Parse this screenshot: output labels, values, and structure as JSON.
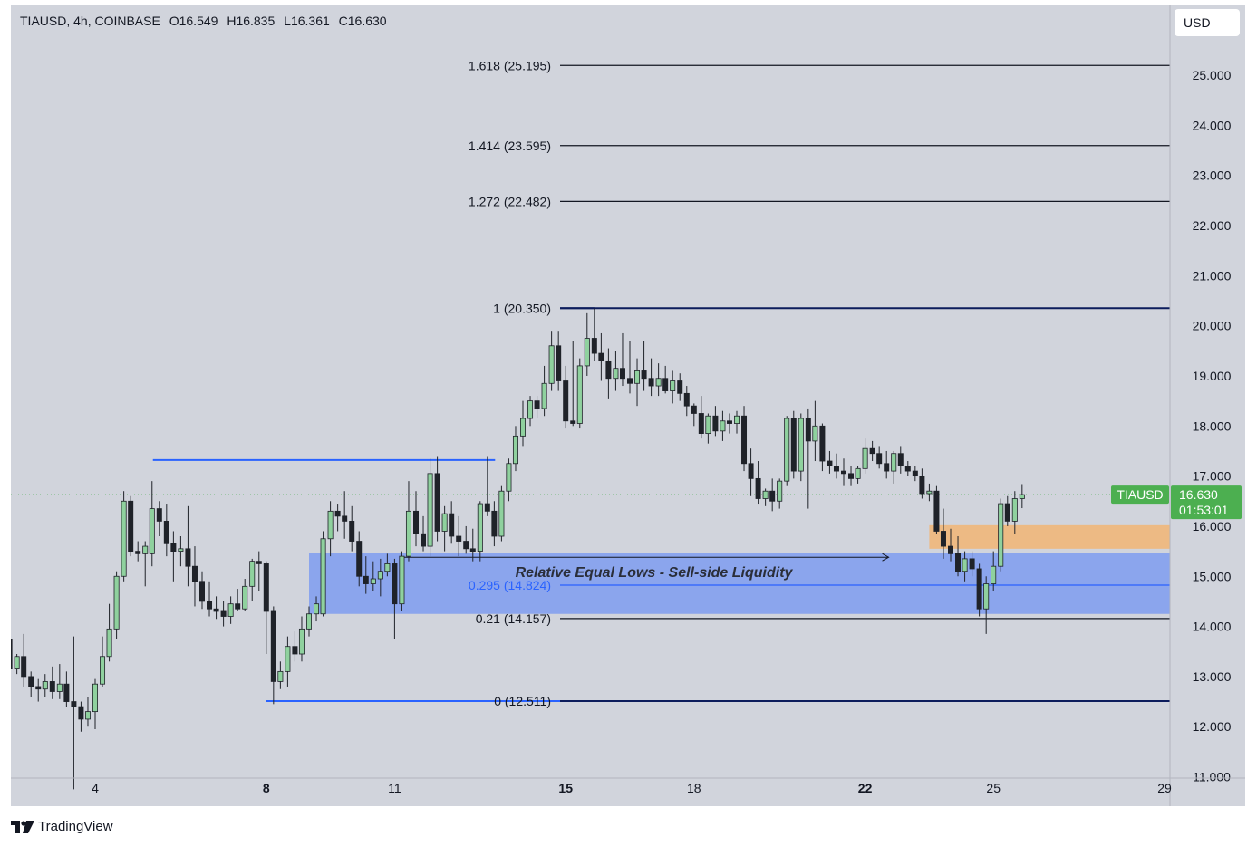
{
  "legend": {
    "symbol": "TIAUSD, 4h, COINBASE",
    "open": "O16.549",
    "high": "H16.835",
    "low": "L16.361",
    "close": "C16.630"
  },
  "currency_button": "USD",
  "brand": "TradingView",
  "price_tag": {
    "symbol": "TIAUSD",
    "price": "16.630",
    "countdown": "01:53:01",
    "value": 16.63
  },
  "colors": {
    "background": "#d1d4dc",
    "bull": "#8fd19e",
    "bear": "#1f2229",
    "fib_line": "#131722",
    "range_line": "#2962ff",
    "top_line": "#0c1c5c",
    "liquidity_zone": "#7f9cf0",
    "demand_zone": "#f0b77a",
    "price_tag": "#4caf50"
  },
  "chart_data": {
    "type": "candlestick",
    "y_axis": {
      "range": [
        10.7,
        26.0
      ],
      "ticks": [
        "11.000",
        "12.000",
        "13.000",
        "14.000",
        "15.000",
        "16.000",
        "17.000",
        "18.000",
        "19.000",
        "20.000",
        "21.000",
        "22.000",
        "23.000",
        "24.000",
        "25.000"
      ]
    },
    "x_axis": {
      "ticks": [
        {
          "label": "4",
          "day": 4,
          "bold": false
        },
        {
          "label": "8",
          "day": 8,
          "bold": true
        },
        {
          "label": "11",
          "day": 11,
          "bold": false
        },
        {
          "label": "15",
          "day": 15,
          "bold": true
        },
        {
          "label": "18",
          "day": 18,
          "bold": false
        },
        {
          "label": "22",
          "day": 22,
          "bold": true
        },
        {
          "label": "25",
          "day": 25,
          "bold": false
        },
        {
          "label": "29",
          "day": 29,
          "bold": false
        }
      ]
    },
    "fib_levels": [
      {
        "label": "1.618 (25.195)",
        "value": 25.195
      },
      {
        "label": "1.414 (23.595)",
        "value": 23.595
      },
      {
        "label": "1.272 (22.482)",
        "value": 22.482
      },
      {
        "label": "1 (20.350)",
        "value": 20.35
      },
      {
        "label": "0.295 (14.824)",
        "value": 14.824
      },
      {
        "label": "0.21 (14.157)",
        "value": 14.157
      },
      {
        "label": "0 (12.511)",
        "value": 12.511
      }
    ],
    "annotation": "Relative Equal Lows - Sell-side Liquidity",
    "zones": {
      "liquidity": {
        "from_day": 9.0,
        "price_low": 14.25,
        "price_high": 15.46
      },
      "demand": {
        "from_day": 23.5,
        "price_low": 15.55,
        "price_high": 16.02
      }
    },
    "range_high": {
      "value": 17.32,
      "from_day": 5.35,
      "to_day": 13.35
    },
    "arrow": {
      "price": 15.38,
      "from_day": 11.15,
      "to_day": 22.55
    },
    "candles": [
      [
        2.0,
        13.75,
        13.9,
        13.1,
        13.15
      ],
      [
        2.17,
        13.15,
        13.45,
        13.05,
        13.4
      ],
      [
        2.33,
        13.4,
        13.85,
        12.8,
        13.0
      ],
      [
        2.5,
        13.0,
        13.1,
        12.6,
        12.8
      ],
      [
        2.67,
        12.8,
        12.95,
        12.5,
        12.75
      ],
      [
        2.83,
        12.75,
        13.05,
        12.6,
        12.9
      ],
      [
        3.0,
        12.9,
        13.2,
        12.55,
        12.7
      ],
      [
        3.17,
        12.7,
        13.25,
        12.55,
        12.85
      ],
      [
        3.33,
        12.85,
        13.1,
        12.4,
        12.5
      ],
      [
        3.5,
        12.5,
        13.8,
        10.75,
        12.4
      ],
      [
        3.67,
        12.4,
        12.5,
        11.9,
        12.15
      ],
      [
        3.83,
        12.15,
        12.6,
        12.0,
        12.3
      ],
      [
        4.0,
        12.3,
        12.95,
        11.95,
        12.85
      ],
      [
        4.17,
        12.85,
        13.8,
        12.8,
        13.4
      ],
      [
        4.33,
        13.4,
        14.45,
        13.3,
        13.95
      ],
      [
        4.5,
        13.95,
        15.1,
        13.75,
        15.0
      ],
      [
        4.67,
        15.0,
        16.7,
        14.9,
        16.5
      ],
      [
        4.83,
        16.5,
        16.6,
        15.4,
        15.5
      ],
      [
        5.0,
        15.5,
        15.7,
        15.3,
        15.45
      ],
      [
        5.17,
        15.45,
        15.7,
        14.8,
        15.6
      ],
      [
        5.33,
        15.45,
        16.9,
        15.2,
        16.35
      ],
      [
        5.5,
        16.35,
        16.5,
        15.8,
        16.1
      ],
      [
        5.67,
        16.1,
        16.45,
        15.4,
        15.65
      ],
      [
        5.83,
        15.65,
        15.9,
        14.9,
        15.5
      ],
      [
        6.0,
        15.5,
        15.8,
        15.2,
        15.55
      ],
      [
        6.17,
        15.55,
        16.4,
        14.8,
        15.2
      ],
      [
        6.33,
        15.2,
        15.6,
        14.4,
        14.9
      ],
      [
        6.5,
        14.9,
        15.1,
        14.35,
        14.5
      ],
      [
        6.67,
        14.5,
        14.9,
        14.2,
        14.35
      ],
      [
        6.83,
        14.35,
        14.6,
        14.15,
        14.3
      ],
      [
        7.0,
        14.3,
        14.5,
        14.0,
        14.2
      ],
      [
        7.17,
        14.2,
        14.6,
        14.05,
        14.45
      ],
      [
        7.33,
        14.45,
        14.75,
        14.3,
        14.35
      ],
      [
        7.5,
        14.35,
        14.95,
        14.3,
        14.8
      ],
      [
        7.67,
        14.8,
        15.35,
        14.5,
        15.3
      ],
      [
        7.83,
        15.3,
        15.5,
        14.7,
        15.25
      ],
      [
        8.0,
        15.25,
        15.3,
        13.45,
        14.3
      ],
      [
        8.17,
        14.3,
        14.4,
        12.45,
        12.9
      ],
      [
        8.33,
        12.9,
        13.3,
        12.75,
        13.1
      ],
      [
        8.5,
        13.1,
        13.8,
        12.8,
        13.6
      ],
      [
        8.67,
        13.6,
        13.9,
        13.3,
        13.45
      ],
      [
        8.83,
        13.45,
        14.2,
        13.3,
        13.95
      ],
      [
        9.0,
        13.95,
        14.4,
        13.8,
        14.25
      ],
      [
        9.17,
        14.25,
        14.6,
        14.1,
        14.45
      ],
      [
        9.33,
        14.25,
        15.9,
        14.2,
        15.75
      ],
      [
        9.5,
        15.75,
        16.5,
        15.4,
        16.3
      ],
      [
        9.67,
        16.3,
        16.45,
        15.9,
        16.2
      ],
      [
        9.83,
        16.2,
        16.7,
        15.75,
        16.1
      ],
      [
        10.0,
        16.1,
        16.4,
        15.5,
        15.7
      ],
      [
        10.17,
        15.7,
        15.9,
        14.8,
        15.0
      ],
      [
        10.33,
        15.0,
        15.4,
        14.65,
        14.85
      ],
      [
        10.5,
        14.85,
        15.3,
        14.7,
        14.95
      ],
      [
        10.67,
        14.95,
        15.35,
        14.6,
        15.1
      ],
      [
        10.83,
        15.1,
        15.45,
        15.0,
        15.25
      ],
      [
        11.0,
        15.25,
        15.35,
        13.75,
        14.45
      ],
      [
        11.17,
        14.45,
        15.5,
        14.3,
        15.4
      ],
      [
        11.33,
        15.4,
        16.9,
        15.3,
        16.3
      ],
      [
        11.5,
        16.3,
        16.7,
        15.6,
        15.85
      ],
      [
        11.67,
        15.85,
        16.2,
        15.5,
        15.6
      ],
      [
        11.83,
        15.6,
        17.35,
        15.4,
        17.05
      ],
      [
        12.0,
        17.05,
        17.4,
        15.7,
        15.9
      ],
      [
        12.17,
        15.9,
        16.4,
        15.5,
        16.25
      ],
      [
        12.33,
        16.25,
        16.5,
        15.65,
        15.8
      ],
      [
        12.5,
        15.8,
        16.2,
        15.4,
        15.7
      ],
      [
        12.67,
        15.7,
        16.0,
        15.45,
        15.55
      ],
      [
        12.83,
        15.55,
        15.95,
        15.3,
        15.5
      ],
      [
        13.0,
        15.5,
        16.5,
        15.3,
        16.45
      ],
      [
        13.17,
        16.45,
        17.4,
        16.2,
        16.3
      ],
      [
        13.33,
        16.3,
        16.5,
        15.6,
        15.8
      ],
      [
        13.5,
        15.8,
        16.8,
        15.7,
        16.7
      ],
      [
        13.67,
        16.7,
        17.35,
        16.5,
        17.25
      ],
      [
        13.83,
        17.25,
        18.0,
        17.1,
        17.8
      ],
      [
        14.0,
        17.8,
        18.5,
        17.6,
        18.15
      ],
      [
        14.17,
        18.15,
        18.6,
        18.0,
        18.5
      ],
      [
        14.33,
        18.5,
        18.6,
        18.15,
        18.35
      ],
      [
        14.5,
        18.35,
        19.2,
        18.2,
        18.85
      ],
      [
        14.67,
        18.85,
        19.9,
        18.7,
        19.6
      ],
      [
        14.83,
        19.6,
        19.9,
        18.7,
        18.9
      ],
      [
        15.0,
        18.9,
        19.2,
        17.95,
        18.1
      ],
      [
        15.17,
        18.1,
        19.7,
        18.0,
        18.05
      ],
      [
        15.33,
        18.05,
        19.35,
        17.95,
        19.2
      ],
      [
        15.5,
        19.2,
        20.25,
        19.0,
        19.75
      ],
      [
        15.67,
        19.75,
        20.35,
        19.3,
        19.45
      ],
      [
        15.83,
        19.45,
        19.85,
        18.9,
        19.3
      ],
      [
        16.0,
        19.3,
        19.55,
        18.55,
        18.95
      ],
      [
        16.17,
        18.95,
        19.5,
        18.7,
        19.15
      ],
      [
        16.33,
        19.15,
        19.85,
        18.8,
        18.95
      ],
      [
        16.5,
        18.95,
        19.7,
        18.65,
        18.85
      ],
      [
        16.67,
        18.85,
        19.35,
        18.4,
        19.1
      ],
      [
        16.83,
        19.1,
        19.7,
        18.7,
        18.95
      ],
      [
        17.0,
        18.95,
        19.35,
        18.6,
        18.8
      ],
      [
        17.17,
        18.8,
        19.25,
        18.6,
        18.95
      ],
      [
        17.33,
        18.95,
        19.2,
        18.65,
        18.7
      ],
      [
        17.5,
        18.7,
        19.1,
        18.45,
        18.9
      ],
      [
        17.67,
        18.9,
        19.05,
        18.5,
        18.65
      ],
      [
        17.83,
        18.65,
        18.8,
        18.2,
        18.4
      ],
      [
        18.0,
        18.4,
        18.45,
        18.0,
        18.25
      ],
      [
        18.17,
        18.25,
        18.6,
        17.75,
        17.85
      ],
      [
        18.33,
        17.85,
        18.25,
        17.65,
        18.2
      ],
      [
        18.5,
        18.2,
        18.4,
        17.8,
        17.9
      ],
      [
        18.67,
        17.9,
        18.3,
        17.7,
        18.1
      ],
      [
        18.83,
        18.1,
        18.25,
        17.85,
        18.05
      ],
      [
        19.0,
        18.05,
        18.3,
        17.85,
        18.2
      ],
      [
        19.17,
        18.2,
        18.4,
        17.1,
        17.25
      ],
      [
        19.33,
        17.25,
        17.55,
        16.6,
        16.95
      ],
      [
        19.5,
        16.95,
        17.3,
        16.45,
        16.55
      ],
      [
        19.67,
        16.55,
        16.75,
        16.4,
        16.7
      ],
      [
        19.83,
        16.7,
        16.95,
        16.3,
        16.5
      ],
      [
        20.0,
        16.5,
        16.95,
        16.35,
        16.9
      ],
      [
        20.17,
        16.9,
        18.2,
        16.8,
        18.15
      ],
      [
        20.33,
        18.15,
        18.3,
        16.95,
        17.1
      ],
      [
        20.5,
        17.1,
        18.25,
        16.9,
        18.15
      ],
      [
        20.67,
        18.15,
        18.35,
        16.35,
        17.7
      ],
      [
        20.83,
        17.7,
        18.5,
        17.3,
        18.0
      ],
      [
        21.0,
        18.0,
        18.05,
        17.1,
        17.3
      ],
      [
        21.17,
        17.3,
        17.5,
        17.05,
        17.2
      ],
      [
        21.33,
        17.2,
        17.45,
        16.95,
        17.1
      ],
      [
        21.5,
        17.1,
        17.35,
        16.8,
        17.05
      ],
      [
        21.67,
        17.05,
        17.2,
        16.8,
        16.95
      ],
      [
        21.83,
        16.95,
        17.2,
        16.85,
        17.15
      ],
      [
        22.0,
        17.15,
        17.75,
        17.05,
        17.55
      ],
      [
        22.17,
        17.55,
        17.7,
        17.3,
        17.45
      ],
      [
        22.33,
        17.45,
        17.6,
        17.15,
        17.25
      ],
      [
        22.5,
        17.25,
        17.5,
        16.95,
        17.1
      ],
      [
        22.67,
        17.1,
        17.5,
        16.85,
        17.45
      ],
      [
        22.83,
        17.45,
        17.6,
        17.05,
        17.2
      ],
      [
        23.0,
        17.2,
        17.3,
        17.0,
        17.1
      ],
      [
        23.17,
        17.1,
        17.2,
        16.9,
        17.0
      ],
      [
        23.33,
        17.0,
        17.15,
        16.55,
        16.65
      ],
      [
        23.5,
        16.65,
        16.85,
        16.5,
        16.7
      ],
      [
        23.67,
        16.7,
        16.8,
        15.85,
        15.9
      ],
      [
        23.83,
        15.9,
        16.35,
        15.35,
        15.6
      ],
      [
        24.0,
        15.6,
        15.95,
        15.3,
        15.45
      ],
      [
        24.17,
        15.45,
        15.8,
        15.0,
        15.1
      ],
      [
        24.33,
        15.1,
        15.5,
        14.9,
        15.35
      ],
      [
        24.5,
        15.35,
        15.5,
        15.0,
        15.15
      ],
      [
        24.67,
        15.15,
        15.25,
        14.2,
        14.35
      ],
      [
        24.83,
        14.35,
        15.0,
        13.85,
        14.85
      ],
      [
        25.0,
        14.85,
        15.5,
        14.7,
        15.2
      ],
      [
        25.17,
        15.2,
        16.55,
        15.1,
        16.45
      ],
      [
        25.33,
        16.45,
        16.6,
        16.0,
        16.1
      ],
      [
        25.5,
        16.1,
        16.7,
        15.85,
        16.55
      ],
      [
        25.67,
        16.55,
        16.84,
        16.36,
        16.63
      ]
    ]
  }
}
